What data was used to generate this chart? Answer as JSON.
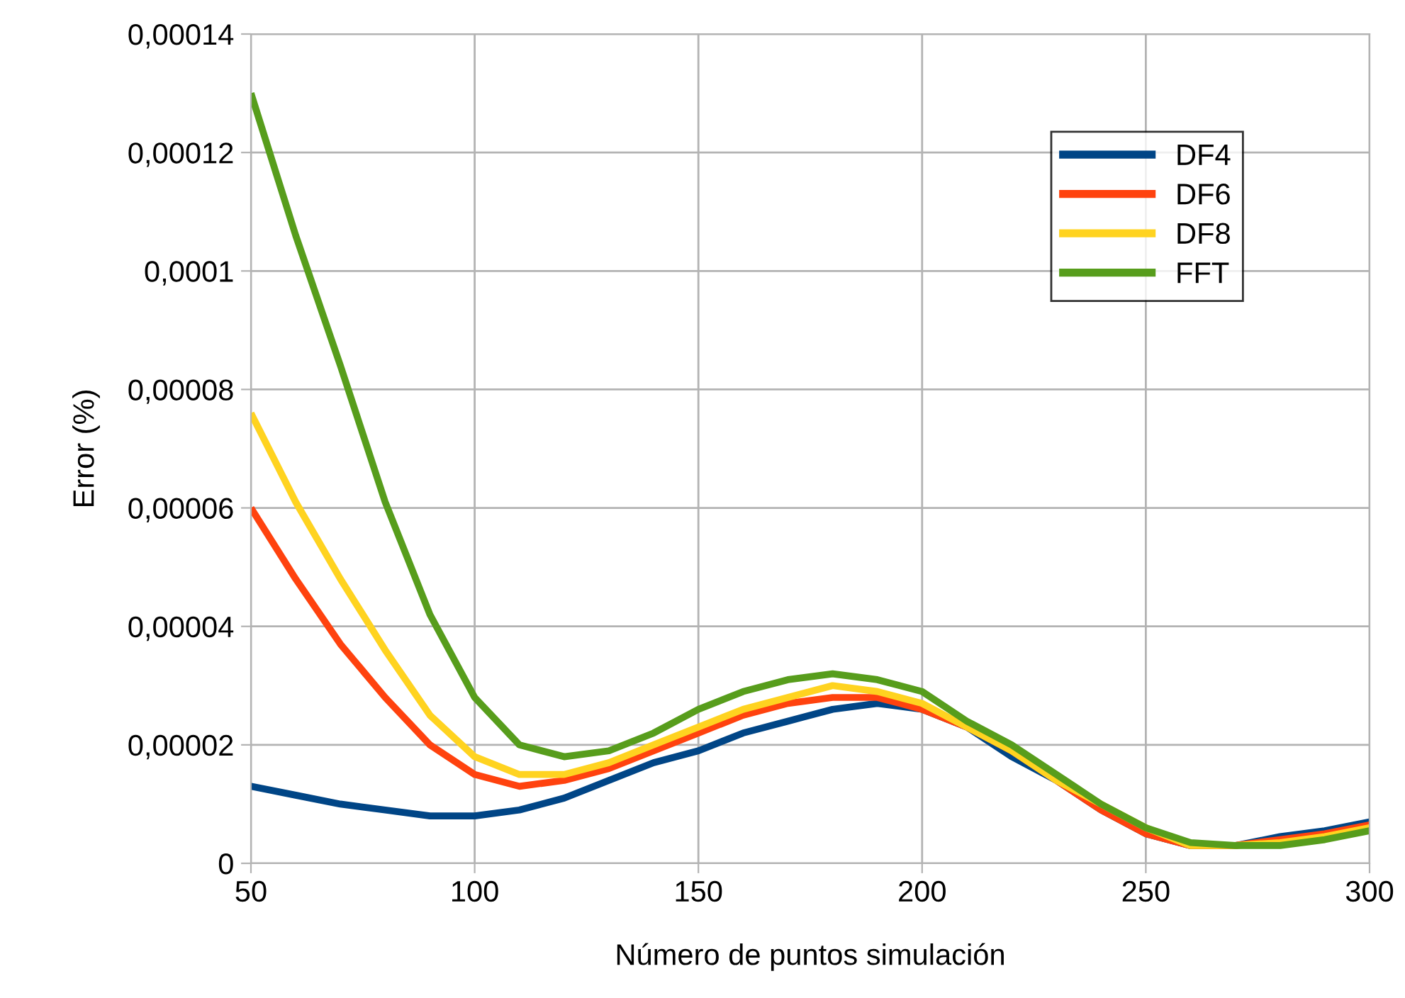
{
  "chart_data": {
    "type": "line",
    "xlabel": "Número de puntos simulación",
    "ylabel": "Error (%)",
    "xlim": [
      50,
      300
    ],
    "xticks": [
      50,
      100,
      150,
      200,
      250,
      300
    ],
    "ylim": [
      0,
      0.00014
    ],
    "yticks": [
      0,
      {
        "value": 2e-05,
        "label": "0,00002"
      },
      {
        "value": 4e-05,
        "label": "0,00004"
      },
      {
        "value": 6e-05,
        "label": "0,00006"
      },
      {
        "value": 8e-05,
        "label": "0,00008"
      },
      {
        "value": 0.0001,
        "label": "0,0001"
      },
      {
        "value": 0.00012,
        "label": "0,00012"
      },
      {
        "value": 0.00014,
        "label": "0,00014"
      }
    ],
    "grid": true,
    "legend": "top right",
    "marker": "none",
    "line_style": "solid",
    "x": [
      50,
      60,
      70,
      80,
      90,
      100,
      110,
      120,
      130,
      140,
      150,
      160,
      170,
      180,
      190,
      200,
      210,
      220,
      230,
      240,
      250,
      260,
      270,
      280,
      290,
      300
    ],
    "series": [
      {
        "name": "DF4",
        "color": "#004586",
        "values": [
          1.3e-05,
          1.15e-05,
          1e-05,
          9e-06,
          8e-06,
          8e-06,
          9e-06,
          1.1e-05,
          1.4e-05,
          1.7e-05,
          1.9e-05,
          2.2e-05,
          2.4e-05,
          2.6e-05,
          2.7e-05,
          2.6e-05,
          2.3e-05,
          1.8e-05,
          1.4e-05,
          9e-06,
          5e-06,
          3e-06,
          3e-06,
          4.5e-06,
          5.5e-06,
          7e-06
        ]
      },
      {
        "name": "DF6",
        "color": "#ff420e",
        "values": [
          6e-05,
          4.8e-05,
          3.7e-05,
          2.8e-05,
          2e-05,
          1.5e-05,
          1.3e-05,
          1.4e-05,
          1.6e-05,
          1.9e-05,
          2.2e-05,
          2.5e-05,
          2.7e-05,
          2.8e-05,
          2.8e-05,
          2.6e-05,
          2.3e-05,
          1.9e-05,
          1.4e-05,
          9e-06,
          5e-06,
          3e-06,
          3e-06,
          4e-06,
          5e-06,
          6.5e-06
        ]
      },
      {
        "name": "DF8",
        "color": "#ffd320",
        "values": [
          7.6e-05,
          6.1e-05,
          4.8e-05,
          3.6e-05,
          2.5e-05,
          1.8e-05,
          1.5e-05,
          1.5e-05,
          1.7e-05,
          2e-05,
          2.3e-05,
          2.6e-05,
          2.8e-05,
          3e-05,
          2.9e-05,
          2.7e-05,
          2.3e-05,
          1.9e-05,
          1.4e-05,
          1e-05,
          6e-06,
          3e-06,
          3e-06,
          3.5e-06,
          4.5e-06,
          6e-06
        ]
      },
      {
        "name": "FFT",
        "color": "#579d1c",
        "values": [
          0.00013,
          0.000106,
          8.4e-05,
          6.1e-05,
          4.2e-05,
          2.8e-05,
          2e-05,
          1.8e-05,
          1.9e-05,
          2.2e-05,
          2.6e-05,
          2.9e-05,
          3.1e-05,
          3.2e-05,
          3.1e-05,
          2.9e-05,
          2.4e-05,
          2e-05,
          1.5e-05,
          1e-05,
          6e-06,
          3.5e-06,
          3e-06,
          3e-06,
          4e-06,
          5.5e-06
        ]
      }
    ]
  }
}
